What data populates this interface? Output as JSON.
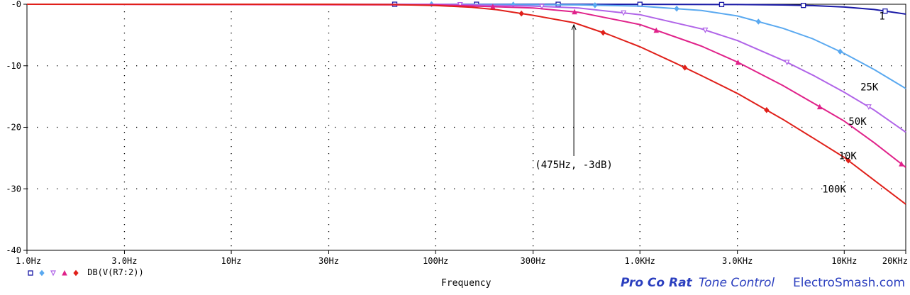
{
  "chart_data": {
    "type": "line",
    "xlabel": "Frequency",
    "x_scale": "log",
    "xlim": [
      1,
      20000
    ],
    "ylim": [
      -40,
      0
    ],
    "x_ticks": [
      {
        "value": 1,
        "label": "1.0Hz"
      },
      {
        "value": 3,
        "label": "3.0Hz"
      },
      {
        "value": 10,
        "label": "10Hz"
      },
      {
        "value": 30,
        "label": "30Hz"
      },
      {
        "value": 100,
        "label": "100Hz"
      },
      {
        "value": 300,
        "label": "300Hz"
      },
      {
        "value": 1000,
        "label": "1.0KHz"
      },
      {
        "value": 3000,
        "label": "3.0KHz"
      },
      {
        "value": 10000,
        "label": "10KHz"
      },
      {
        "value": 20000,
        "label": "20KHz"
      }
    ],
    "y_ticks": [
      {
        "value": 0,
        "label": "-0"
      },
      {
        "value": -10,
        "label": "-10"
      },
      {
        "value": -20,
        "label": "-20"
      },
      {
        "value": -30,
        "label": "-30"
      },
      {
        "value": -40,
        "label": "-40"
      }
    ],
    "grid": "dotted",
    "legend_label": "DB(V(R7:2))",
    "series": [
      {
        "name": "1",
        "color": "#1a1aa6",
        "marker": "square",
        "x": [
          1,
          100,
          1000,
          3000,
          5000,
          7000,
          10000,
          14000,
          20000
        ],
        "y": [
          0,
          0,
          -0.01,
          -0.05,
          -0.12,
          -0.22,
          -0.45,
          -0.85,
          -1.6
        ]
      },
      {
        "name": "25K",
        "color": "#5aa9f0",
        "marker": "diamond",
        "x": [
          1,
          100,
          500,
          1000,
          2000,
          3000,
          5000,
          7000,
          10000,
          14000,
          20000
        ],
        "y": [
          0,
          0,
          -0.1,
          -0.3,
          -1.0,
          -1.9,
          -3.9,
          -5.6,
          -8.0,
          -10.6,
          -13.7
        ]
      },
      {
        "name": "50K",
        "color": "#b064e8",
        "marker": "triangle-down",
        "x": [
          1,
          100,
          300,
          500,
          1000,
          2000,
          3000,
          5000,
          7000,
          10000,
          14000,
          20000
        ],
        "y": [
          0,
          0,
          -0.3,
          -0.6,
          -1.7,
          -4.0,
          -5.9,
          -9.1,
          -11.5,
          -14.3,
          -17.2,
          -20.8
        ]
      },
      {
        "name": "10K",
        "color": "#e0228a",
        "marker": "triangle-up",
        "x": [
          1,
          100,
          300,
          500,
          1000,
          2000,
          3000,
          5000,
          7000,
          10000,
          14000,
          20000
        ],
        "y": [
          0,
          -0.1,
          -0.6,
          -1.3,
          -3.3,
          -6.8,
          -9.4,
          -13.2,
          -16.0,
          -19.0,
          -22.5,
          -26.5
        ]
      },
      {
        "name": "100K",
        "color": "#e0201a",
        "marker": "diamond",
        "x": [
          1,
          30,
          60,
          100,
          150,
          200,
          300,
          475,
          700,
          1000,
          1500,
          2000,
          3000,
          5000,
          7000,
          10000,
          14000,
          20000
        ],
        "y": [
          0,
          0,
          -0.05,
          -0.2,
          -0.5,
          -0.9,
          -1.8,
          -3.0,
          -4.9,
          -6.9,
          -9.6,
          -11.6,
          -14.5,
          -18.7,
          -21.7,
          -24.9,
          -28.6,
          -32.5
        ]
      }
    ],
    "series_labels": [
      {
        "series": "1",
        "text": "1",
        "x": 14800,
        "y": -2.5
      },
      {
        "series": "25K",
        "text": "25K",
        "x": 12000,
        "y": -14.0
      },
      {
        "series": "50K",
        "text": "50K",
        "x": 10500,
        "y": -19.6
      },
      {
        "series": "10K",
        "text": "10K",
        "x": 9400,
        "y": -25.2
      },
      {
        "series": "100K",
        "text": "100K",
        "x": 7800,
        "y": -30.6
      }
    ],
    "annotation": {
      "text": "(475Hz, -3dB)",
      "x": 475,
      "y": -3.0
    }
  },
  "credits": {
    "title": "Pro Co Rat",
    "subtitle": "Tone Control",
    "site": "ElectroSmash.com"
  }
}
